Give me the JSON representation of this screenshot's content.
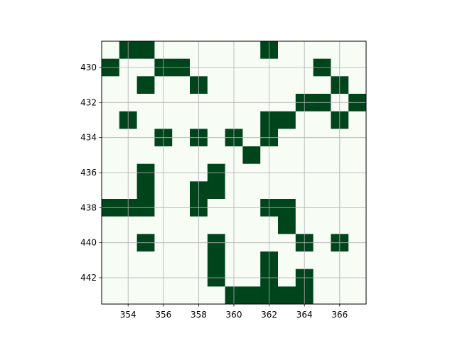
{
  "chart_data": {
    "type": "heatmap",
    "title": "",
    "xlabel": "",
    "ylabel": "",
    "x_range": [
      352.5,
      367.5
    ],
    "y_range": [
      428.5,
      443.5
    ],
    "y_inverted": true,
    "grid": true,
    "colors": {
      "filled": "#00441b",
      "empty": "#f7fcf5",
      "grid": "#b0b0b0"
    },
    "x_ticks": [
      "354",
      "356",
      "358",
      "360",
      "362",
      "364",
      "366"
    ],
    "y_ticks": [
      "430",
      "432",
      "434",
      "436",
      "438",
      "440",
      "442"
    ],
    "x_tick_values": [
      354,
      356,
      358,
      360,
      362,
      364,
      366
    ],
    "y_tick_values": [
      430,
      432,
      434,
      436,
      438,
      440,
      442
    ],
    "x_start": 353,
    "y_start": 429,
    "rows": [
      "011000000100000",
      "100110000000100",
      "001001000000010",
      "000000000001101",
      "010000000110010",
      "000101010100000",
      "000000001000000",
      "001000100000000",
      "001001100000000",
      "111001000110000",
      "000000000010000",
      "001000100001010",
      "000000100100000",
      "000000100101000",
      "000000011111000"
    ]
  }
}
